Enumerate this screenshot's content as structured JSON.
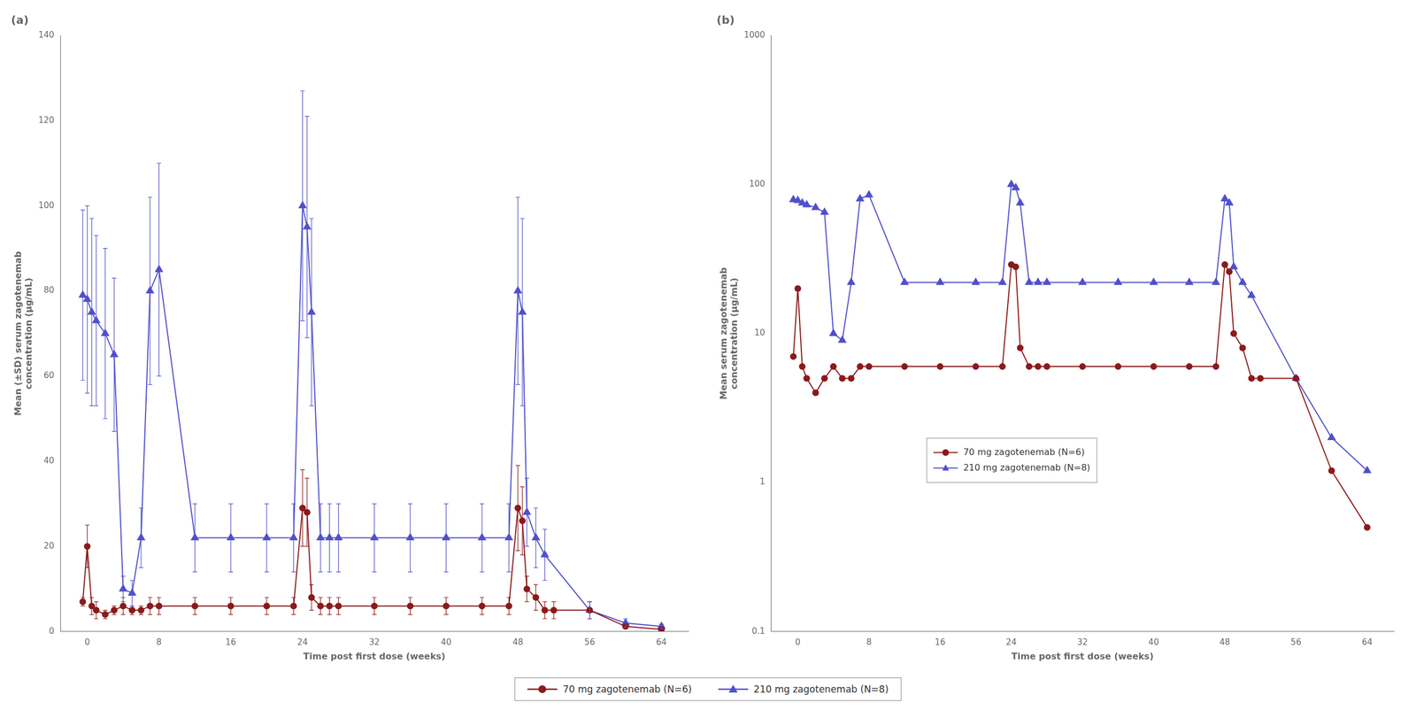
{
  "chart_data": [
    {
      "type": "line",
      "title": "(a)",
      "xlabel": "Time post first dose (weeks)",
      "ylabel": "Mean (±SD) serum zagotenemab\nconcentration (µg/mL)",
      "xlim": [
        -3,
        67
      ],
      "xticks": [
        0,
        8,
        16,
        24,
        32,
        40,
        48,
        56,
        64
      ],
      "ylim": [
        0,
        140
      ],
      "yticks": [
        0,
        20,
        40,
        60,
        80,
        100,
        120,
        140
      ],
      "grid": false,
      "legend": "bottom",
      "series": [
        {
          "name": "70 mg zagotenemab (N=6)",
          "color": "#8B1A1A",
          "marker": "circle",
          "line_style": "solid",
          "x": [
            -0.5,
            0,
            0.5,
            1,
            2,
            3,
            4,
            5,
            6,
            7,
            8,
            12,
            16,
            20,
            23,
            24,
            24.5,
            25,
            26,
            27,
            28,
            32,
            36,
            40,
            44,
            47,
            48,
            48.5,
            49,
            50,
            51,
            52,
            56,
            60,
            64
          ],
          "values": [
            7,
            20,
            6,
            5,
            4,
            5,
            6,
            5,
            5,
            6,
            6,
            6,
            6,
            6,
            6,
            29,
            28,
            8,
            6,
            6,
            6,
            6,
            6,
            6,
            6,
            6,
            29,
            26,
            10,
            8,
            5,
            5,
            5,
            1.2,
            0.5
          ],
          "errors": [
            1,
            5,
            2,
            2,
            1,
            1,
            2,
            1,
            1,
            2,
            2,
            2,
            2,
            2,
            2,
            9,
            8,
            3,
            2,
            2,
            2,
            2,
            2,
            2,
            2,
            2,
            10,
            8,
            3,
            3,
            2,
            2,
            2,
            0.5,
            0.2
          ]
        },
        {
          "name": "210 mg zagotenemab (N=8)",
          "color": "#5050CC",
          "marker": "triangle",
          "line_style": "solid",
          "x": [
            -0.5,
            0,
            0.5,
            1,
            2,
            3,
            4,
            5,
            6,
            7,
            8,
            12,
            16,
            20,
            23,
            24,
            24.5,
            25,
            26,
            27,
            28,
            32,
            36,
            40,
            44,
            47,
            48,
            48.5,
            49,
            50,
            51,
            56,
            60,
            64
          ],
          "values": [
            79,
            78,
            75,
            73,
            70,
            65,
            10,
            9,
            22,
            80,
            85,
            22,
            22,
            22,
            22,
            100,
            95,
            75,
            22,
            22,
            22,
            22,
            22,
            22,
            22,
            22,
            80,
            75,
            28,
            22,
            18,
            5,
            2,
            1.2
          ],
          "errors": [
            20,
            22,
            22,
            20,
            20,
            18,
            3,
            3,
            7,
            22,
            25,
            8,
            8,
            8,
            8,
            27,
            26,
            22,
            8,
            8,
            8,
            8,
            8,
            8,
            8,
            8,
            22,
            22,
            8,
            7,
            6,
            2,
            1,
            0.5
          ]
        }
      ]
    },
    {
      "type": "line",
      "title": "(b)",
      "xlabel": "Time post first dose (weeks)",
      "ylabel": "Mean serum zagotenemab\nconcentration (µg/mL)",
      "xlim": [
        -3,
        67
      ],
      "xticks": [
        0,
        8,
        16,
        24,
        32,
        40,
        48,
        56,
        64
      ],
      "ylim": [
        0.1,
        1000
      ],
      "yticks": [
        0.1,
        1,
        10,
        100,
        1000
      ],
      "log": "y",
      "grid": false,
      "legend": "lower left",
      "series": [
        {
          "name": "70 mg zagotenemab (N=6)",
          "color": "#8B1A1A",
          "marker": "circle",
          "line_style": "solid",
          "x": [
            -0.5,
            0,
            0.5,
            1,
            2,
            3,
            4,
            5,
            6,
            7,
            8,
            12,
            16,
            20,
            23,
            24,
            24.5,
            25,
            26,
            27,
            28,
            32,
            36,
            40,
            44,
            47,
            48,
            48.5,
            49,
            50,
            51,
            52,
            56,
            60,
            64
          ],
          "values": [
            7,
            20,
            6,
            5,
            4,
            5,
            6,
            5,
            5,
            6,
            6,
            6,
            6,
            6,
            6,
            29,
            28,
            8,
            6,
            6,
            6,
            6,
            6,
            6,
            6,
            6,
            29,
            26,
            10,
            8,
            5,
            5,
            5,
            1.2,
            0.5
          ]
        },
        {
          "name": "210 mg zagotenemab (N=8)",
          "color": "#5050CC",
          "marker": "triangle",
          "line_style": "solid",
          "x": [
            -0.5,
            0,
            0.5,
            1,
            2,
            3,
            4,
            5,
            6,
            7,
            8,
            12,
            16,
            20,
            23,
            24,
            24.5,
            25,
            26,
            27,
            28,
            32,
            36,
            40,
            44,
            47,
            48,
            48.5,
            49,
            50,
            51,
            56,
            60,
            64
          ],
          "values": [
            79,
            78,
            75,
            73,
            70,
            65,
            10,
            9,
            22,
            80,
            85,
            22,
            22,
            22,
            22,
            100,
            95,
            75,
            22,
            22,
            22,
            22,
            22,
            22,
            22,
            22,
            80,
            75,
            28,
            22,
            18,
            5,
            2,
            1.2
          ]
        }
      ]
    }
  ]
}
